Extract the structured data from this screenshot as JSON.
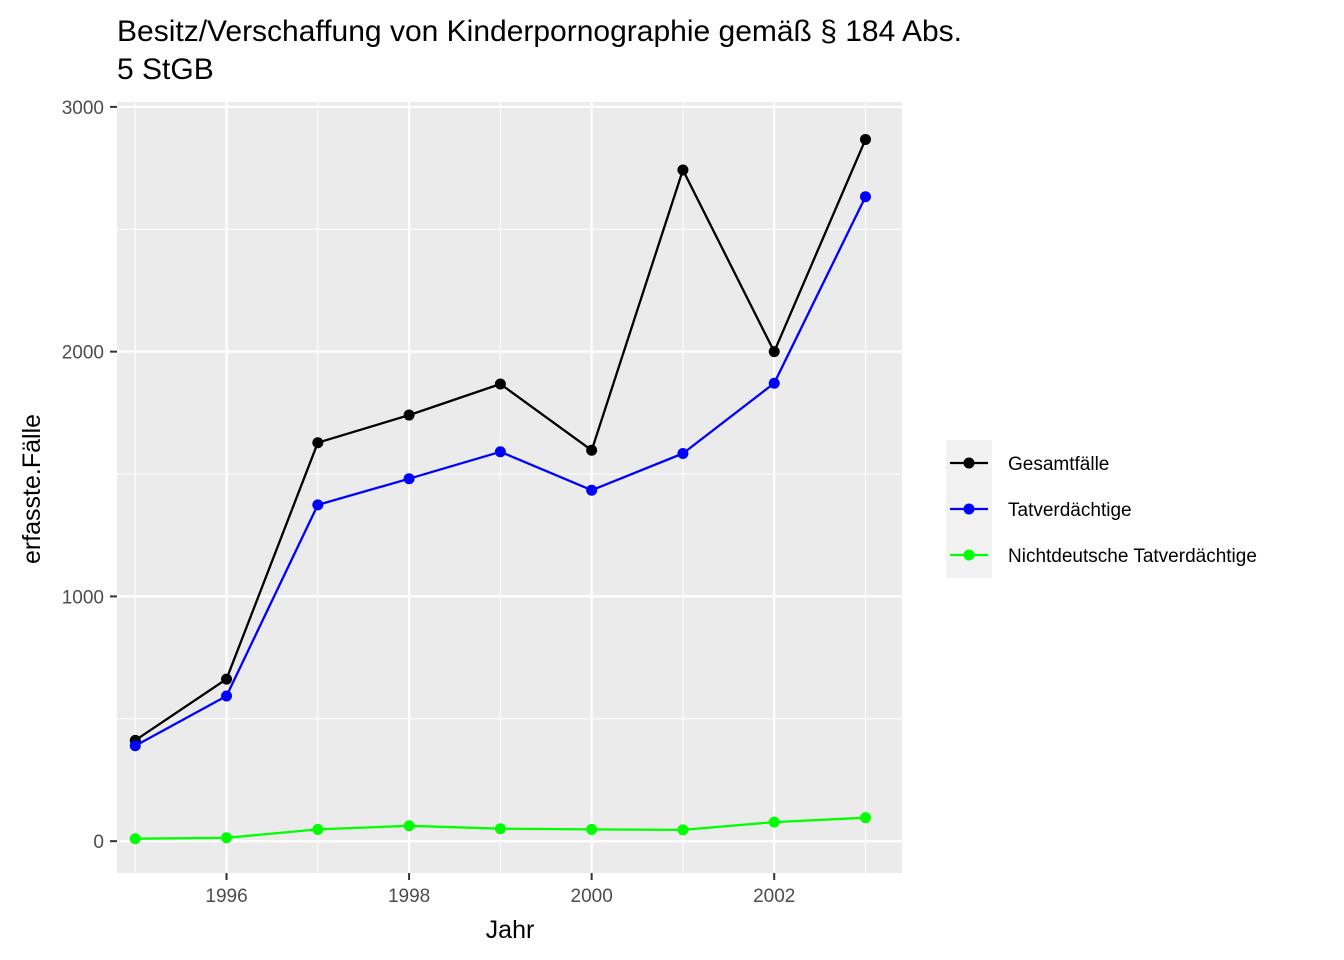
{
  "chart_data": {
    "type": "line",
    "title": "Besitz/Verschaffung von Kinderpornographie gemäß § 184 Abs. 5 StGB",
    "title_lines": [
      "Besitz/Verschaffung von Kinderpornographie gemäß § 184 Abs.",
      "5 StGB"
    ],
    "xlabel": "Jahr",
    "ylabel": "erfasste.Fälle",
    "x": [
      1995,
      1996,
      1997,
      1998,
      1999,
      2000,
      2001,
      2002,
      2003
    ],
    "x_ticks": [
      1996,
      1998,
      2000,
      2002
    ],
    "x_tick_labels": [
      "1996",
      "1998",
      "2000",
      "2002"
    ],
    "y_ticks": [
      0,
      1000,
      2000,
      3000
    ],
    "y_tick_labels": [
      "0",
      "1000",
      "2000",
      "3000"
    ],
    "xlim": [
      1994.8,
      2003.4
    ],
    "ylim": [
      -130,
      3020
    ],
    "grid": true,
    "background": "#ebebeb",
    "legend_position": "right",
    "series": [
      {
        "name": "Gesamtfälle",
        "color": "#000000",
        "values": [
          412,
          662,
          1628,
          1741,
          1868,
          1597,
          2742,
          2000,
          2867
        ]
      },
      {
        "name": "Tatverdächtige",
        "color": "#0000ff",
        "values": [
          390,
          593,
          1374,
          1481,
          1591,
          1434,
          1584,
          1871,
          2633
        ]
      },
      {
        "name": "Nichtdeutsche Tatverdächtige",
        "color": "#00ff00",
        "values": [
          10,
          14,
          48,
          63,
          51,
          48,
          46,
          78,
          96
        ]
      }
    ]
  }
}
